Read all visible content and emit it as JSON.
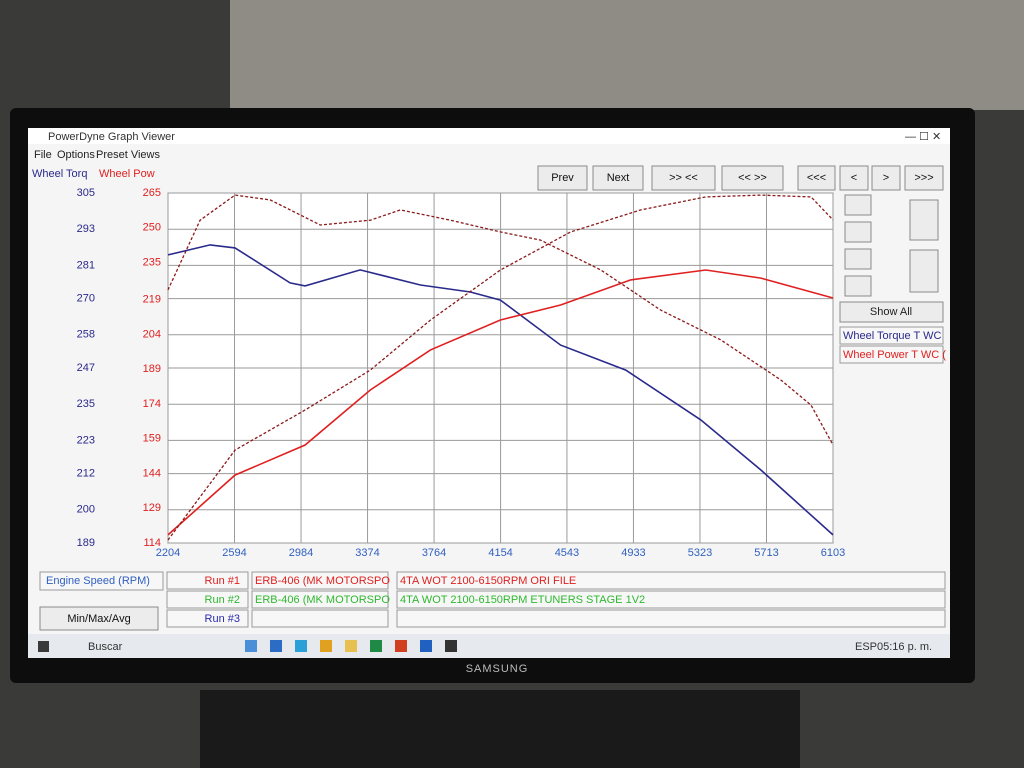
{
  "window": {
    "title": "PowerDyne Graph Viewer",
    "menu": [
      "File",
      "Options",
      "Preset Views"
    ]
  },
  "toolbar": [
    "Prev",
    "Next",
    ">> <<",
    "<< >>",
    "<<<",
    "<",
    ">",
    ">>>"
  ],
  "show_all": "Show All",
  "legend": [
    "Wheel Torque T WC",
    "Wheel Power T WC ("
  ],
  "chart_data": {
    "type": "line",
    "ylabel": "Wheel Torq",
    "y2label": "Wheel Pow",
    "xlabel": "Engine Speed (RPM)",
    "xlim": [
      2204,
      6103
    ],
    "xticks": [
      2204,
      2594,
      2984,
      3374,
      3764,
      4154,
      4543,
      4933,
      5323,
      5713,
      6103
    ],
    "ylim": [
      189,
      305
    ],
    "yticks": [
      305,
      293,
      281,
      270,
      258,
      247,
      235,
      223,
      212,
      200,
      189
    ],
    "y2lim": [
      114,
      265
    ],
    "y2ticks": [
      265,
      250,
      235,
      219,
      204,
      189,
      174,
      159,
      144,
      129,
      114
    ],
    "grid": true,
    "series": [
      {
        "color": "#2a2a8c",
        "dash": false,
        "x": [
          2204,
          2451,
          2597,
          2920,
          3008,
          3331,
          3684,
          3977,
          4153,
          4506,
          4888,
          5328,
          5680,
          6103
        ],
        "values": [
          284.5,
          287.8,
          286.8,
          275.2,
          274.2,
          279.5,
          274.5,
          272.2,
          269.5,
          254.6,
          246.3,
          229.8,
          213.2,
          191.7
        ]
      },
      {
        "color": "#e02020",
        "dash": false,
        "axis": "y2",
        "x": [
          2204,
          2597,
          3008,
          3390,
          3743,
          4153,
          4506,
          4917,
          5357,
          5680,
          6103
        ],
        "values": [
          117.5,
          143.3,
          156.3,
          180.0,
          197.3,
          210.2,
          216.7,
          227.5,
          231.8,
          228.3,
          219.7
        ]
      },
      {
        "color": "#8b1a1a",
        "dash": true,
        "x": [
          2204,
          2392,
          2597,
          2803,
          3097,
          3390,
          3566,
          3860,
          4153,
          4388,
          4741,
          5093,
          5445,
          5798,
          5974,
          6103
        ],
        "values": [
          272.9,
          296.0,
          304.3,
          302.7,
          294.4,
          296.0,
          299.4,
          296.0,
          292.1,
          289.4,
          279.5,
          266.2,
          256.3,
          243.0,
          234.7,
          221.5
        ]
      },
      {
        "color": "#8b1a1a",
        "dash": true,
        "axis": "y2",
        "x": [
          2204,
          2597,
          3008,
          3390,
          3743,
          4153,
          4565,
          4976,
          5357,
          5680,
          5974,
          6103
        ],
        "values": [
          115.3,
          154.1,
          171.4,
          188.6,
          210.2,
          231.8,
          248.2,
          257.7,
          263.3,
          264.1,
          263.3,
          253.4
        ]
      }
    ]
  },
  "runs": [
    {
      "label": "Run #1",
      "color": "#e02020",
      "vehicle": "ERB-406 (MK MOTORSPO",
      "description": "4TA WOT 2100-6150RPM ORI FILE"
    },
    {
      "label": "Run #2",
      "color": "#2fb82f",
      "vehicle": "ERB-406 (MK MOTORSPO",
      "description": "4TA WOT 2100-6150RPM ETUNERS STAGE 1V2"
    },
    {
      "label": "Run #3",
      "color": "#2a2ab0"
    }
  ],
  "min_max_button": "Min/Max/Avg",
  "taskbar": {
    "search": "Buscar",
    "language": "ESP",
    "clock": "05:16 p. m."
  },
  "monitor_brand": "SAMSUNG"
}
